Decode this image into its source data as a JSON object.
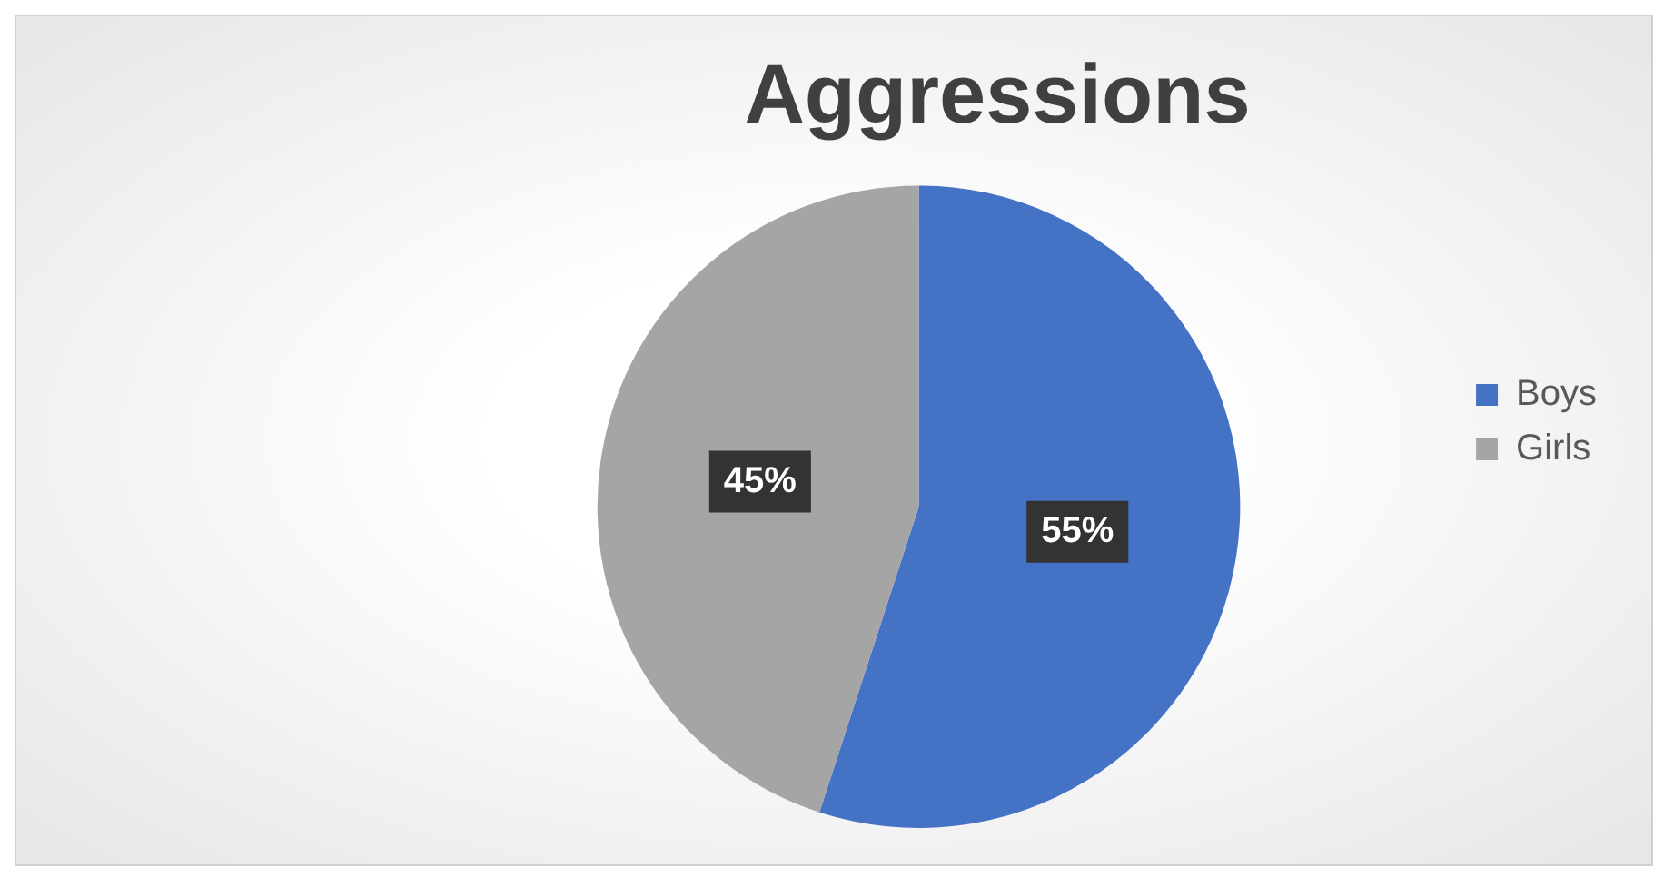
{
  "chart_data": {
    "type": "pie",
    "title": "Aggressions",
    "categories": [
      "Boys",
      "Girls"
    ],
    "values": [
      55,
      45
    ],
    "colors": [
      "#4472c4",
      "#a5a5a5"
    ],
    "value_labels": [
      "55%",
      "45%"
    ],
    "legend": "right"
  }
}
